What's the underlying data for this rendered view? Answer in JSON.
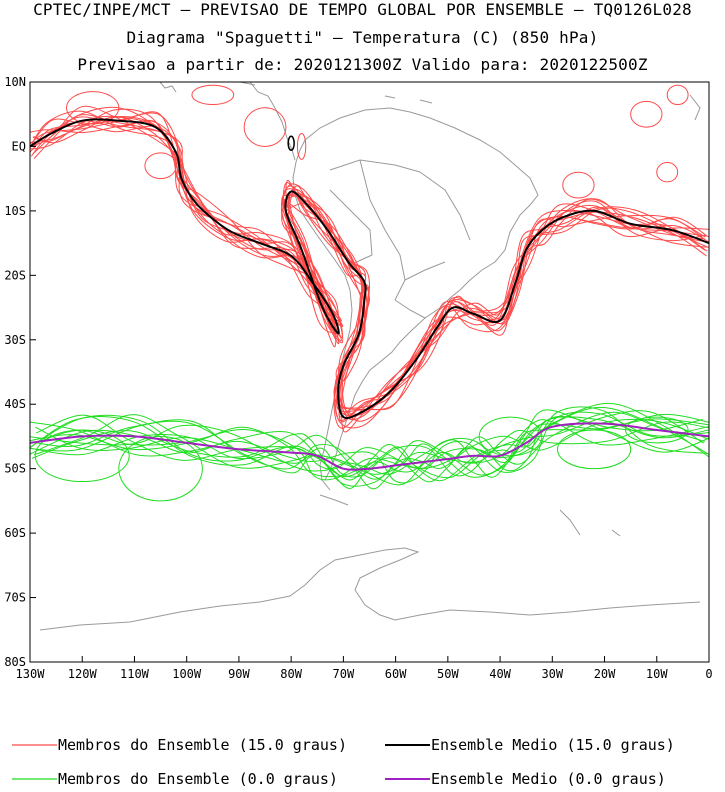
{
  "header": {
    "line1": "CPTEC/INPE/MCT – PREVISAO DE TEMPO GLOBAL POR ENSEMBLE – TQ0126L028",
    "line2": "Diagrama \"Spaguetti\" – Temperatura (C) (850 hPa)",
    "line3": "Previsao a partir de: 2020121300Z  Valido para: 2020122500Z"
  },
  "map": {
    "lon_range": [
      -130,
      0
    ],
    "lat_range": [
      -80,
      10
    ],
    "lat_ticks": [
      {
        "value": 10,
        "label": "10N"
      },
      {
        "value": 0,
        "label": "EQ"
      },
      {
        "value": -10,
        "label": "10S"
      },
      {
        "value": -20,
        "label": "20S"
      },
      {
        "value": -30,
        "label": "30S"
      },
      {
        "value": -40,
        "label": "40S"
      },
      {
        "value": -50,
        "label": "50S"
      },
      {
        "value": -60,
        "label": "60S"
      },
      {
        "value": -70,
        "label": "70S"
      },
      {
        "value": -80,
        "label": "80S"
      }
    ],
    "lon_ticks": [
      {
        "value": -130,
        "label": "130W"
      },
      {
        "value": -120,
        "label": "120W"
      },
      {
        "value": -110,
        "label": "110W"
      },
      {
        "value": -100,
        "label": "100W"
      },
      {
        "value": -90,
        "label": "90W"
      },
      {
        "value": -80,
        "label": "80W"
      },
      {
        "value": -70,
        "label": "70W"
      },
      {
        "value": -60,
        "label": "60W"
      },
      {
        "value": -50,
        "label": "50W"
      },
      {
        "value": -40,
        "label": "40W"
      },
      {
        "value": -30,
        "label": "30W"
      },
      {
        "value": -20,
        "label": "20W"
      },
      {
        "value": -10,
        "label": "10W"
      },
      {
        "value": 0,
        "label": "0"
      }
    ],
    "coastline_color": "#9a9a9a"
  },
  "contours": {
    "members_15": {
      "color": "#ff4a4a"
    },
    "mean_15": {
      "color": "#000000"
    },
    "members_0": {
      "color": "#22dd22"
    },
    "mean_0": {
      "color": "#a020c0"
    }
  },
  "legend": [
    {
      "label": "Membros do Ensemble (15.0 graus)",
      "color": "#ff4a4a"
    },
    {
      "label": "Ensemble Medio (15.0 graus)",
      "color": "#000000"
    },
    {
      "label": "Membros do Ensemble (0.0 graus)",
      "color": "#22dd22"
    },
    {
      "label": "Ensemble Medio (0.0 graus)",
      "color": "#a020c0"
    }
  ]
}
